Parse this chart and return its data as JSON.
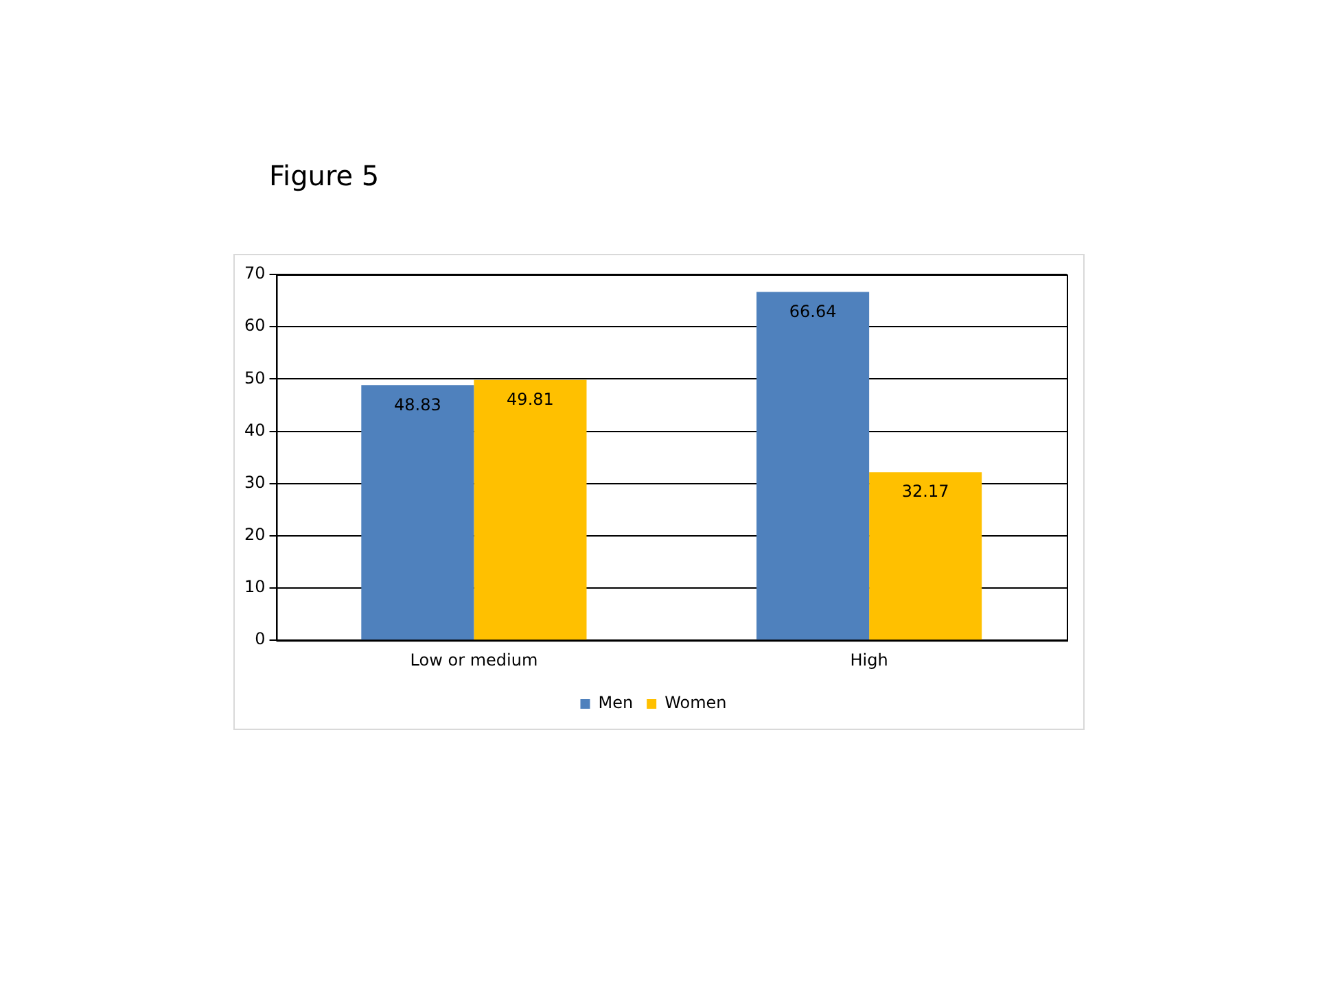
{
  "chart_data": {
    "type": "bar",
    "title": "Figure 5",
    "categories": [
      "Low or medium",
      "High"
    ],
    "series": [
      {
        "name": "Men",
        "color": "#4f81bd",
        "values": [
          48.83,
          66.64
        ]
      },
      {
        "name": "Women",
        "color": "#ffc000",
        "values": [
          49.81,
          32.17
        ]
      }
    ],
    "ylim": [
      0,
      70
    ],
    "yticks": [
      0,
      10,
      20,
      30,
      40,
      50,
      60,
      70
    ],
    "grid": "y",
    "legend": "bottom",
    "data_labels": true
  }
}
